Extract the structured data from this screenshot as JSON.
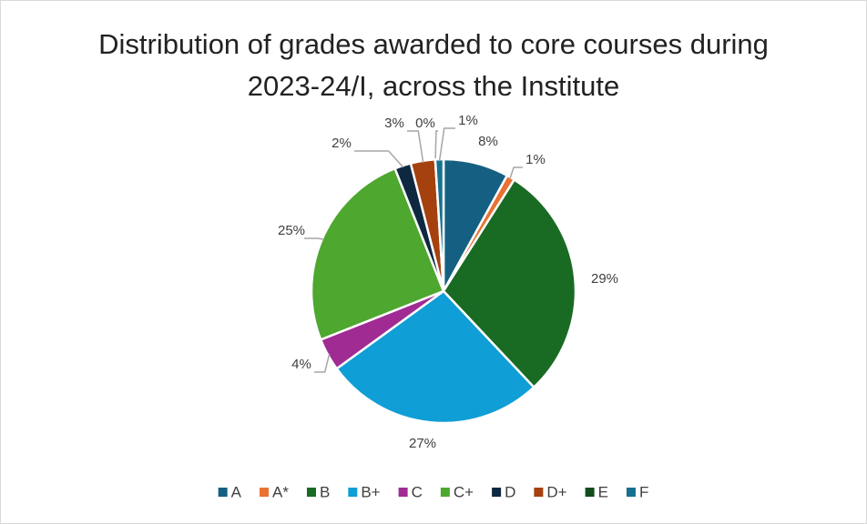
{
  "chart_data": {
    "type": "pie",
    "title": "Distribution of grades awarded to core courses during 2023-24/I, across the Institute",
    "categories": [
      "A",
      "A*",
      "B",
      "B+",
      "C",
      "C+",
      "D",
      "D+",
      "E",
      "F"
    ],
    "values": [
      8,
      1,
      29,
      27,
      4,
      25,
      2,
      3,
      0,
      1
    ],
    "value_labels": [
      "8%",
      "1%",
      "29%",
      "27%",
      "4%",
      "25%",
      "2%",
      "3%",
      "0%",
      "1%"
    ],
    "colors": [
      "#156082",
      "#e97132",
      "#196b24",
      "#0f9ed5",
      "#a02b93",
      "#4ea72e",
      "#0e2841",
      "#a5400f",
      "#124d1c",
      "#17708f"
    ],
    "legend": "bottom"
  }
}
